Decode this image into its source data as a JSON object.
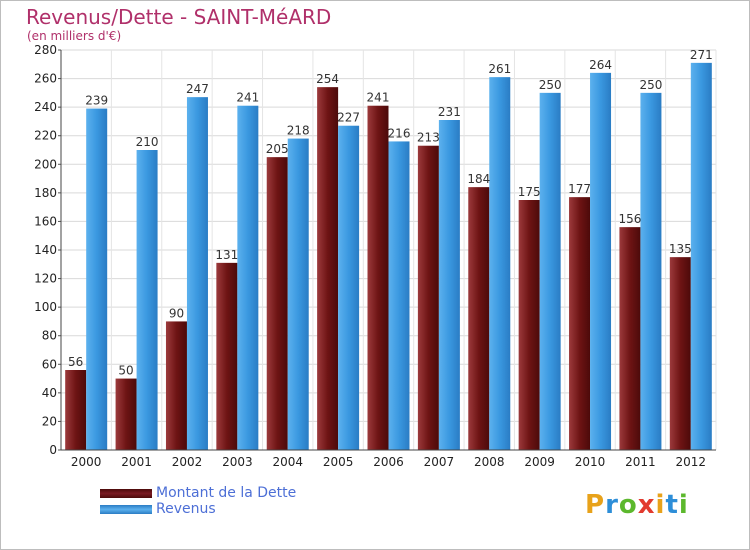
{
  "header": {
    "title": "Revenus/Dette - SAINT-MéARD",
    "subtitle": "(en milliers d'€)"
  },
  "chart_data": {
    "type": "bar",
    "categories": [
      "2000",
      "2001",
      "2002",
      "2003",
      "2004",
      "2005",
      "2006",
      "2007",
      "2008",
      "2009",
      "2010",
      "2011",
      "2012"
    ],
    "series": [
      {
        "name": "Montant de la Dette",
        "values": [
          56,
          50,
          90,
          131,
          205,
          254,
          241,
          213,
          184,
          175,
          177,
          156,
          135
        ],
        "color": "#7a1a22"
      },
      {
        "name": "Revenus",
        "values": [
          239,
          210,
          247,
          241,
          218,
          227,
          216,
          231,
          261,
          250,
          264,
          250,
          271
        ],
        "color": "#3a98e0"
      }
    ],
    "ylim": [
      0,
      280
    ],
    "yticks": [
      0,
      20,
      40,
      60,
      80,
      100,
      120,
      140,
      160,
      180,
      200,
      220,
      240,
      260,
      280
    ],
    "grid": true,
    "legend": "bottom-left",
    "title": "Revenus/Dette - SAINT-MéARD",
    "ylabel": "(en milliers d'€)",
    "xlabel": ""
  },
  "logo": {
    "text": "Proxiti",
    "letters": [
      {
        "ch": "P",
        "color": "#e8a21a"
      },
      {
        "ch": "r",
        "color": "#2d8ed8"
      },
      {
        "ch": "o",
        "color": "#5cb82d"
      },
      {
        "ch": "x",
        "color": "#e23a2e"
      },
      {
        "ch": "i",
        "color": "#e8a21a"
      },
      {
        "ch": "t",
        "color": "#2d8ed8"
      },
      {
        "ch": "i",
        "color": "#5cb82d"
      }
    ]
  }
}
